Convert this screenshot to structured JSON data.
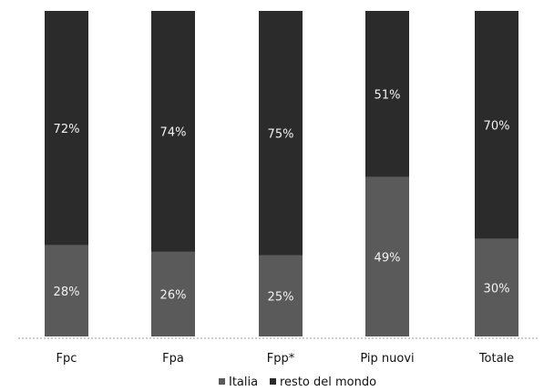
{
  "chart_data": {
    "type": "bar",
    "stacked": true,
    "normalized": true,
    "categories": [
      "Fpc",
      "Fpa",
      "Fpp*",
      "Pip nuovi",
      "Totale"
    ],
    "series": [
      {
        "name": "Italia",
        "values": [
          28,
          26,
          25,
          49,
          30
        ],
        "labels": [
          "28%",
          "26%",
          "25%",
          "49%",
          "30%"
        ],
        "color": "#5a5a5a"
      },
      {
        "name": "resto del mondo",
        "values": [
          72,
          74,
          75,
          51,
          70
        ],
        "labels": [
          "72%",
          "74%",
          "75%",
          "51%",
          "70%"
        ],
        "color": "#2b2b2b"
      }
    ],
    "ylim": [
      0,
      100
    ],
    "grid": false,
    "legend_position": "bottom"
  }
}
